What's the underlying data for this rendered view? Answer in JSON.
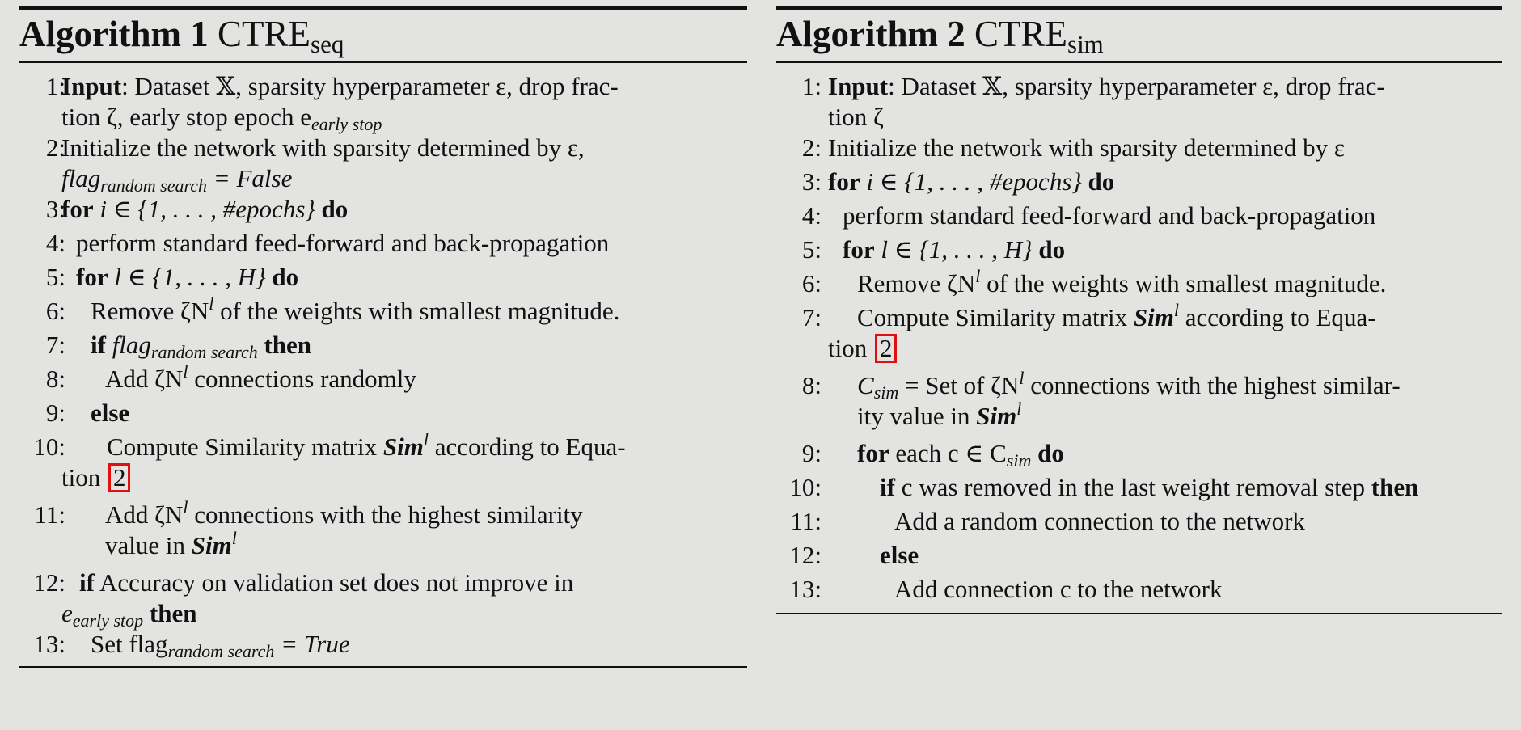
{
  "algo1": {
    "title_keyword": "Algorithm 1",
    "title_name": "CTRE",
    "title_sub": "seq",
    "lines": [
      {
        "num": "1:",
        "a": "Input",
        "b": ": Dataset 𝕏, sparsity hyperparameter ε, drop frac-",
        "c": "tion ζ, early stop epoch e",
        "c_sub": "early stop"
      },
      {
        "num": "2:",
        "a": "Initialize the network with sparsity determined by ε,",
        "b": "flag",
        "b_sub": "random search",
        "c": " = False"
      },
      {
        "num": "3:",
        "kw1": "for",
        "a": " i ∈ {1, . . . , #epochs} ",
        "kw2": "do"
      },
      {
        "num": "4:",
        "a": "perform standard feed-forward and back-propagation"
      },
      {
        "num": "5:",
        "kw1": "for",
        "a": " l ∈ {1, . . . , H} ",
        "kw2": "do"
      },
      {
        "num": "6:",
        "a": "Remove ζN",
        "sup": "l",
        "b": " of the weights with smallest magnitude."
      },
      {
        "num": "7:",
        "kw1": "if",
        "a": " flag",
        "a_sub": "random search",
        "kw2": " then"
      },
      {
        "num": "8:",
        "a": "Add ζN",
        "sup": "l",
        "b": " connections randomly"
      },
      {
        "num": "9:",
        "kw1": "else"
      },
      {
        "num": "10:",
        "a": "Compute Similarity matrix ",
        "bold": "Sim",
        "sup": "l",
        "b": " according to Equa-",
        "c": "tion ",
        "ref": "2"
      },
      {
        "num": "11:",
        "a": "Add ζN",
        "sup": "l",
        "b": " connections with the highest similarity",
        "c": "value in ",
        "bold": "Sim",
        "sup2": "l"
      },
      {
        "num": "12:",
        "kw1": "if",
        "a": " Accuracy on validation set does not improve in",
        "c": "e",
        "c_sub": "early stop",
        "kw2": " then"
      },
      {
        "num": "13:",
        "a": "Set flag",
        "a_sub": "random search",
        "b": " = True"
      }
    ]
  },
  "algo2": {
    "title_keyword": "Algorithm 2",
    "title_name": "CTRE",
    "title_sub": "sim",
    "lines": [
      {
        "num": "1:",
        "a": "Input",
        "b": ": Dataset 𝕏, sparsity hyperparameter ε, drop frac-",
        "c": "tion ζ"
      },
      {
        "num": "2:",
        "a": "Initialize the network with sparsity determined by ε"
      },
      {
        "num": "3:",
        "kw1": "for",
        "a": " i ∈ {1, . . . , #epochs} ",
        "kw2": "do"
      },
      {
        "num": "4:",
        "a": "perform standard feed-forward and back-propagation"
      },
      {
        "num": "5:",
        "kw1": "for",
        "a": " l ∈ {1, . . . , H} ",
        "kw2": "do"
      },
      {
        "num": "6:",
        "a": "Remove ζN",
        "sup": "l",
        "b": " of the weights with smallest magnitude."
      },
      {
        "num": "7:",
        "a": "Compute Similarity matrix ",
        "bold": "Sim",
        "sup": "l",
        "b": " according to Equa-",
        "c": "tion ",
        "ref": "2"
      },
      {
        "num": "8:",
        "a": "C",
        "a_sub": "sim",
        "b": " = Set of ζN",
        "sup": "l",
        "c": " connections with the highest similar-",
        "d": "ity value in ",
        "bold": "Sim",
        "sup2": "l"
      },
      {
        "num": "9:",
        "kw1": "for",
        "a": " each c ∈ C",
        "a_sub": "sim",
        "kw2": " do"
      },
      {
        "num": "10:",
        "kw1": "if",
        "a": " c was removed in the last weight removal step ",
        "kw2": "then"
      },
      {
        "num": "11:",
        "a": "Add a random connection to the network"
      },
      {
        "num": "12:",
        "kw1": "else"
      },
      {
        "num": "13:",
        "a": "Add connection c to the network"
      }
    ]
  }
}
